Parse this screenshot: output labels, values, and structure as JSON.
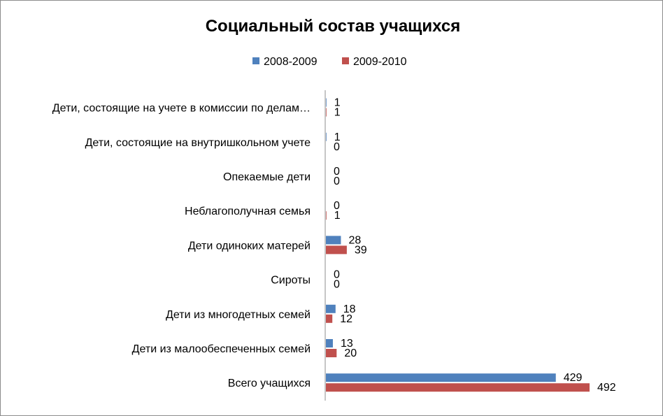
{
  "chart_data": {
    "type": "bar",
    "orientation": "horizontal",
    "title": "Социальный состав учащихся",
    "legend_position": "top",
    "categories": [
      "Дети, состоящие на учете в комиссии по делам…",
      "Дети, состоящие на внутришкольном учете",
      "Опекаемые дети",
      "Неблагополучная семья",
      "Дети одиноких матерей",
      "Сироты",
      "Дети из многодетных семей",
      "Дети из малообеспеченных семей",
      "Всего учащихся"
    ],
    "series": [
      {
        "name": "2008-2009",
        "color": "#4f81bd",
        "values": [
          1,
          1,
          0,
          0,
          28,
          0,
          18,
          13,
          429
        ]
      },
      {
        "name": "2009-2010",
        "color": "#c0504d",
        "values": [
          1,
          0,
          0,
          1,
          39,
          0,
          12,
          20,
          492
        ]
      }
    ],
    "xlim": [
      0,
      500
    ],
    "grid": false
  }
}
